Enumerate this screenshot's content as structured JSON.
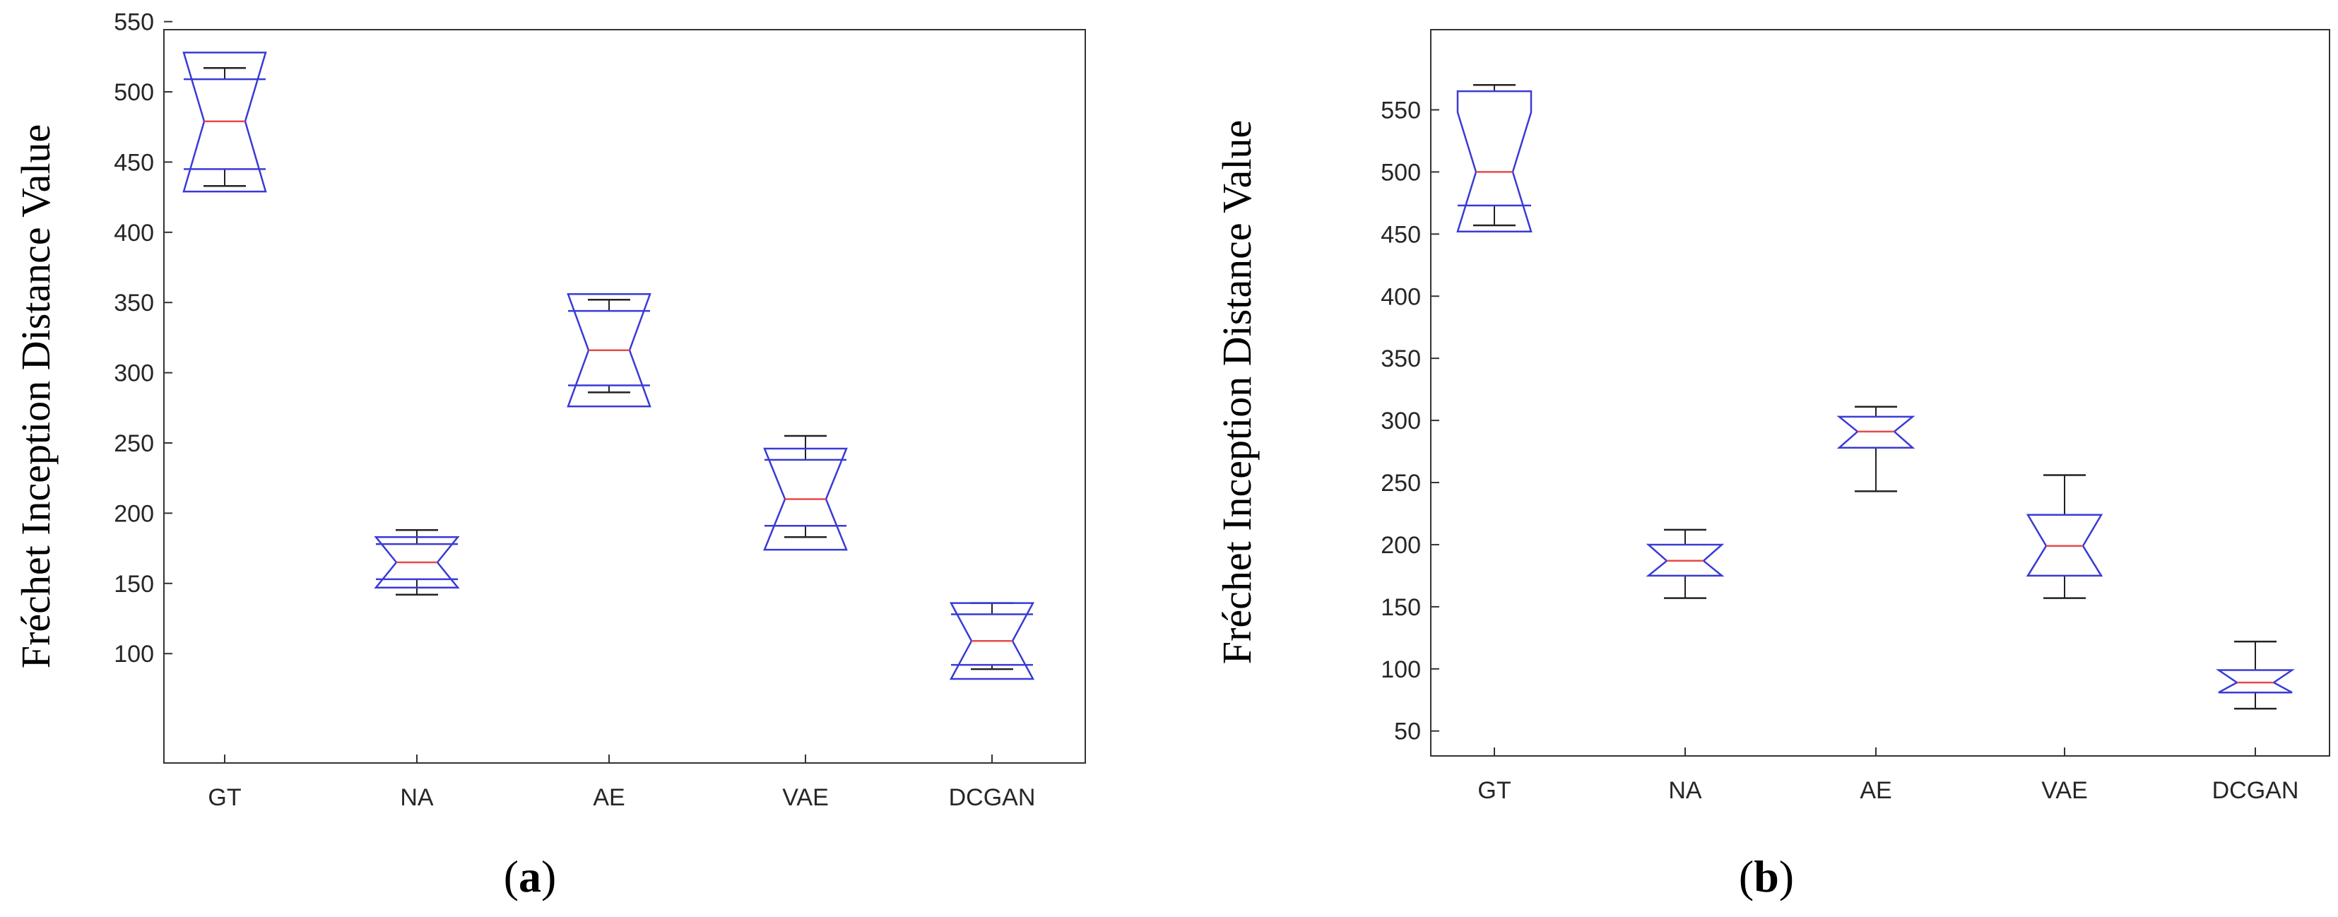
{
  "chart_data": [
    {
      "type": "box",
      "panel_label": "a",
      "ylabel": "Fréchet Inception Distance Value",
      "xlabel": "",
      "title": "",
      "categories": [
        "GT",
        "NA",
        "AE",
        "VAE",
        "DCGAN"
      ],
      "yticks": [
        100,
        150,
        200,
        250,
        300,
        350,
        400,
        450,
        500,
        550
      ],
      "ylim": [
        50,
        550
      ],
      "notched": true,
      "grid": false,
      "boxes": [
        {
          "label": "GT",
          "whisker_low": 433,
          "q1": 445,
          "median": 479,
          "q3": 509,
          "whisker_high": 517,
          "notch_low": 429,
          "notch_high": 528
        },
        {
          "label": "NA",
          "whisker_low": 142,
          "q1": 153,
          "median": 165,
          "q3": 178,
          "whisker_high": 188,
          "notch_low": 147,
          "notch_high": 183
        },
        {
          "label": "AE",
          "whisker_low": 286,
          "q1": 291,
          "median": 316,
          "q3": 344,
          "whisker_high": 352,
          "notch_low": 276,
          "notch_high": 356
        },
        {
          "label": "VAE",
          "whisker_low": 183,
          "q1": 191,
          "median": 210,
          "q3": 238,
          "whisker_high": 255,
          "notch_low": 174,
          "notch_high": 246
        },
        {
          "label": "DCGAN",
          "whisker_low": 89,
          "q1": 92,
          "median": 109,
          "q3": 128,
          "whisker_high": 136,
          "notch_low": 82,
          "notch_high": 136
        }
      ]
    },
    {
      "type": "box",
      "panel_label": "b",
      "ylabel": "Fréchet Inception Distance Value",
      "xlabel": "",
      "title": "",
      "categories": [
        "GT",
        "NA",
        "AE",
        "VAE",
        "DCGAN"
      ],
      "yticks": [
        50,
        100,
        150,
        200,
        250,
        300,
        350,
        400,
        450,
        500,
        550
      ],
      "ylim": [
        40,
        580
      ],
      "notched": true,
      "grid": false,
      "boxes": [
        {
          "label": "GT",
          "whisker_low": 457,
          "q1": 473,
          "median": 500,
          "q3": 565,
          "whisker_high": 570,
          "notch_low": 452,
          "notch_high": 548
        },
        {
          "label": "NA",
          "whisker_low": 157,
          "q1": 175,
          "median": 187,
          "q3": 200,
          "whisker_high": 212,
          "notch_low": 175,
          "notch_high": 200
        },
        {
          "label": "AE",
          "whisker_low": 243,
          "q1": 278,
          "median": 291,
          "q3": 303,
          "whisker_high": 311,
          "notch_low": 278,
          "notch_high": 303
        },
        {
          "label": "VAE",
          "whisker_low": 157,
          "q1": 175,
          "median": 199,
          "q3": 224,
          "whisker_high": 256,
          "notch_low": 175,
          "notch_high": 224
        },
        {
          "label": "DCGAN",
          "whisker_low": 68,
          "q1": 81,
          "median": 89,
          "q3": 99,
          "whisker_high": 122,
          "notch_low": 81,
          "notch_high": 99
        }
      ]
    }
  ],
  "colors": {
    "box": "#3a3ad6",
    "median": "#e84a4a",
    "whisker": "#222222",
    "axis": "#333333"
  }
}
